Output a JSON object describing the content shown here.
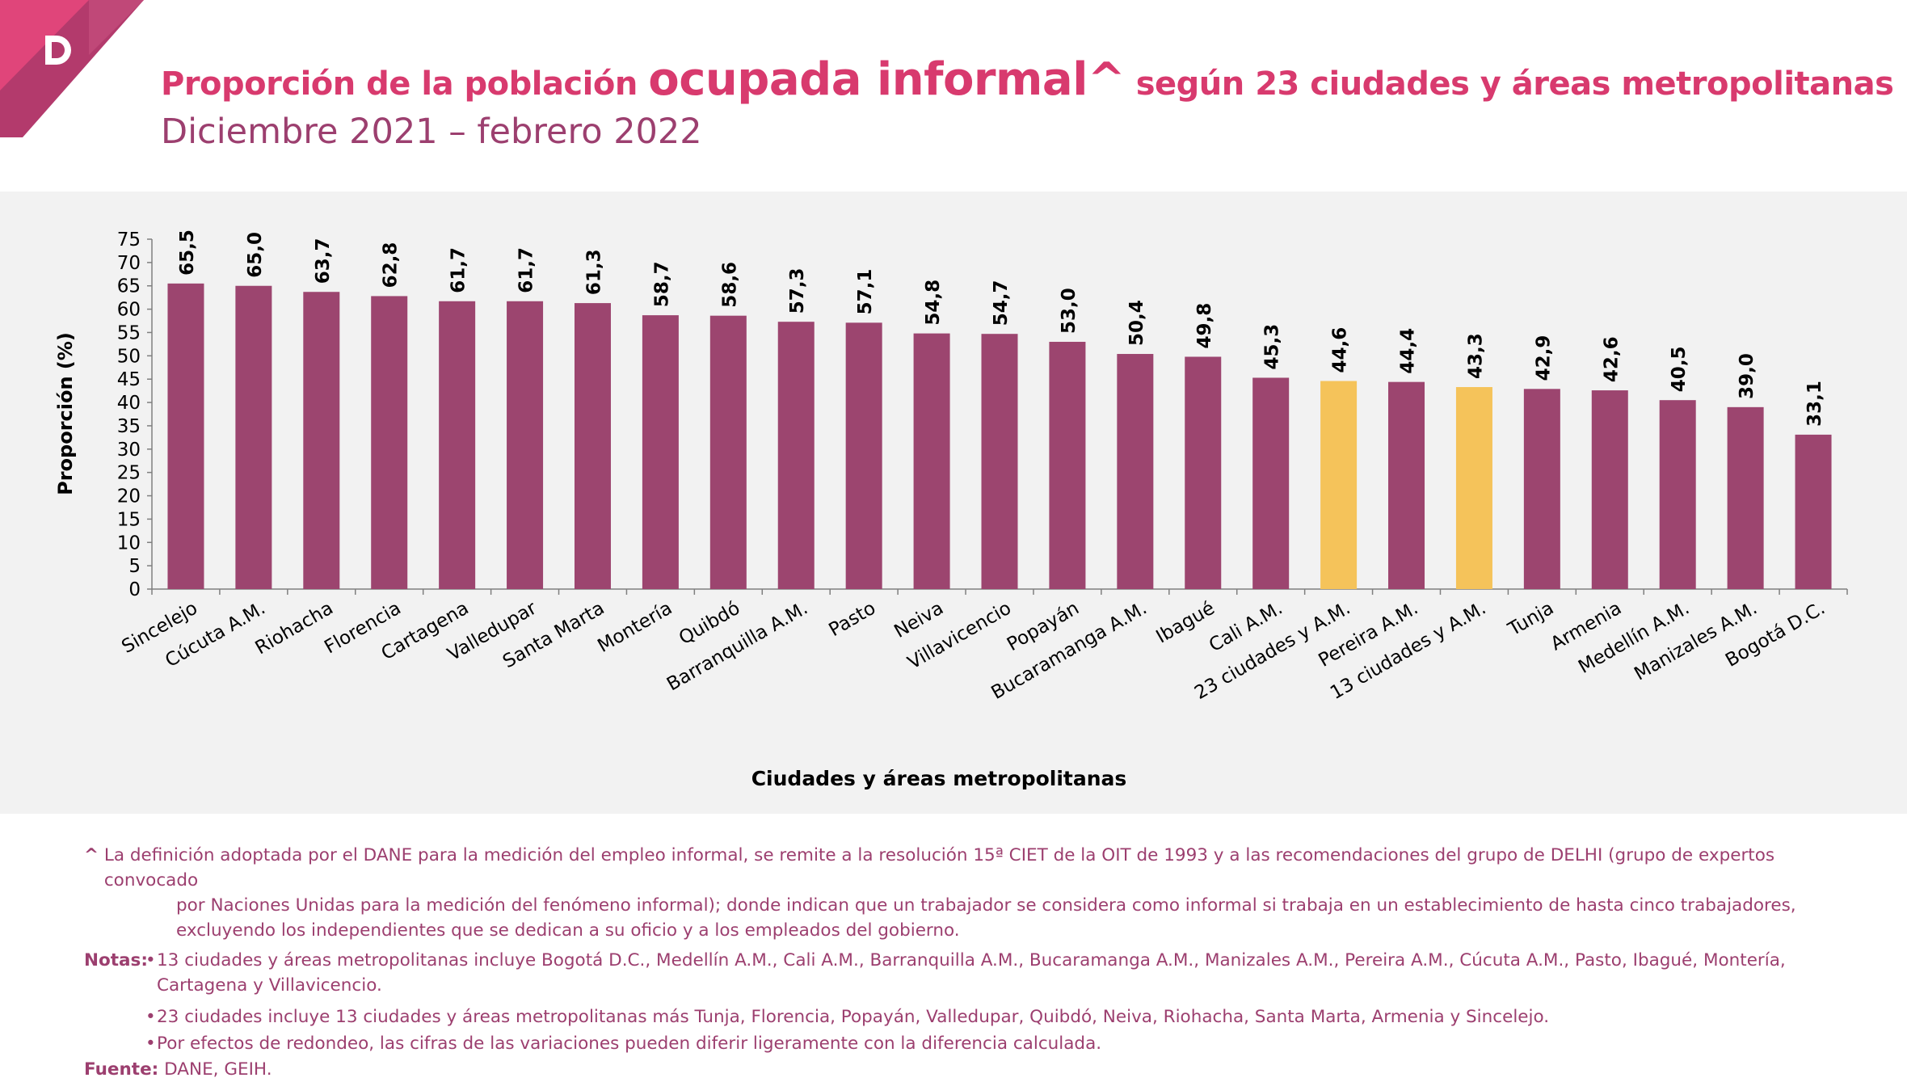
{
  "header": {
    "title_part1": "Proporción de la población ",
    "title_big": "ocupada informal^",
    "title_part2": " según 23 ciudades y áreas metropolitanas",
    "subtitle": "Diciembre 2021 – febrero 2022"
  },
  "colors": {
    "bar": "#9c456f",
    "highlight": "#f5c35a",
    "accent": "#d83a6e",
    "note_text": "#9c3f6f"
  },
  "chart_data": {
    "type": "bar",
    "title": "Proporción de la población ocupada informal^ según 23 ciudades y áreas metropolitanas",
    "xlabel": "Ciudades y áreas metropolitanas",
    "ylabel": "Proporción (%)",
    "ylim": [
      0,
      75
    ],
    "yticks": [
      0,
      5,
      10,
      15,
      20,
      25,
      30,
      35,
      40,
      45,
      50,
      55,
      60,
      65,
      70,
      75
    ],
    "grid": false,
    "categories": [
      "Sincelejo",
      "Cúcuta A.M.",
      "Riohacha",
      "Florencia",
      "Cartagena",
      "Valledupar",
      "Santa Marta",
      "Montería",
      "Quibdó",
      "Barranquilla A.M.",
      "Pasto",
      "Neiva",
      "Villavicencio",
      "Popayán",
      "Bucaramanga A.M.",
      "Ibagué",
      "Cali A.M.",
      "23 ciudades y A.M.",
      "Pereira A.M.",
      "13 ciudades y A.M.",
      "Tunja",
      "Armenia",
      "Medellín A.M.",
      "Manizales A.M.",
      "Bogotá D.C."
    ],
    "values": [
      65.5,
      65.0,
      63.7,
      62.8,
      61.7,
      61.7,
      61.3,
      58.7,
      58.6,
      57.3,
      57.1,
      54.8,
      54.7,
      53.0,
      50.4,
      49.8,
      45.3,
      44.6,
      44.4,
      43.3,
      42.9,
      42.6,
      40.5,
      39.0,
      33.1
    ],
    "value_labels": [
      "65,5",
      "65,0",
      "63,7",
      "62,8",
      "61,7",
      "61,7",
      "61,3",
      "58,7",
      "58,6",
      "57,3",
      "57,1",
      "54,8",
      "54,7",
      "53,0",
      "50,4",
      "49,8",
      "45,3",
      "44,6",
      "44,4",
      "43,3",
      "42,9",
      "42,6",
      "40,5",
      "39,0",
      "33,1"
    ],
    "highlighted": [
      "23 ciudades y A.M.",
      "13 ciudades y A.M."
    ]
  },
  "notes": {
    "caret_label": "^",
    "caret_line1": "La definición adoptada por el DANE para la medición del empleo informal, se remite a la resolución 15ª CIET de la OIT de 1993 y a las recomendaciones del grupo de DELHI  (grupo de expertos convocado",
    "caret_line2": "por Naciones Unidas para la medición del fenómeno informal); donde indican que un trabajador se considera como informal si trabaja en un establecimiento de hasta cinco trabajadores,",
    "caret_line3": "excluyendo los independientes que se dedican a su oficio y a los empleados del gobierno.",
    "notas_label": "Notas:",
    "bullet": "•",
    "items": [
      "13 ciudades y áreas metropolitanas incluye Bogotá D.C., Medellín A.M., Cali A.M., Barranquilla A.M., Bucaramanga A.M., Manizales A.M., Pereira A.M., Cúcuta A.M., Pasto, Ibagué, Montería, Cartagena y Villavicencio.",
      "23 ciudades incluye 13 ciudades y áreas metropolitanas más Tunja, Florencia, Popayán, Valledupar, Quibdó, Neiva, Riohacha, Santa Marta, Armenia y Sincelejo.",
      "Por efectos de redondeo, las cifras de las variaciones pueden diferir ligeramente con la diferencia calculada."
    ],
    "fuente_label": "Fuente:",
    "fuente_text": "DANE, GEIH."
  }
}
